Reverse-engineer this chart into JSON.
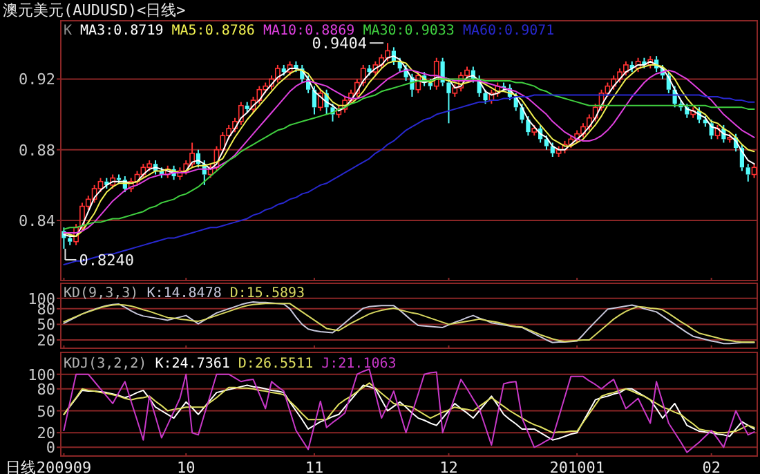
{
  "chart_data": [
    {
      "type": "candlestick",
      "title": "澳元美元(AUDUSD)<日线>",
      "annotations": [
        "K",
        "0.9404",
        "0.8240"
      ],
      "categories": [
        "200909",
        null,
        null,
        null,
        null,
        null,
        null,
        null,
        null,
        null,
        null,
        null,
        null,
        null,
        null,
        null,
        null,
        null,
        null,
        null,
        "10",
        null,
        null,
        null,
        null,
        null,
        null,
        null,
        null,
        null,
        null,
        null,
        null,
        null,
        null,
        null,
        null,
        null,
        null,
        null,
        null,
        "11",
        null,
        null,
        null,
        null,
        null,
        null,
        null,
        null,
        null,
        null,
        null,
        null,
        null,
        null,
        null,
        null,
        null,
        null,
        null,
        null,
        null,
        "12",
        null,
        null,
        null,
        null,
        null,
        null,
        null,
        null,
        null,
        null,
        null,
        null,
        null,
        null,
        null,
        null,
        null,
        null,
        null,
        null,
        "201001",
        null,
        null,
        null,
        null,
        null,
        null,
        null,
        null,
        null,
        null,
        null,
        null,
        null,
        null,
        null,
        null,
        null,
        null,
        null,
        null,
        null,
        "02",
        null,
        null,
        null,
        null,
        null,
        null,
        null
      ],
      "ohlc": [
        [
          0.834,
          0.836,
          0.824,
          0.83
        ],
        [
          0.83,
          0.832,
          0.826,
          0.828
        ],
        [
          0.828,
          0.838,
          0.826,
          0.836
        ],
        [
          0.836,
          0.85,
          0.834,
          0.848
        ],
        [
          0.848,
          0.854,
          0.846,
          0.852
        ],
        [
          0.852,
          0.86,
          0.85,
          0.858
        ],
        [
          0.858,
          0.864,
          0.856,
          0.862
        ],
        [
          0.862,
          0.864,
          0.858,
          0.86
        ],
        [
          0.86,
          0.866,
          0.858,
          0.864
        ],
        [
          0.864,
          0.866,
          0.861,
          0.863
        ],
        [
          0.863,
          0.865,
          0.856,
          0.858
        ],
        [
          0.858,
          0.864,
          0.856,
          0.862
        ],
        [
          0.862,
          0.868,
          0.86,
          0.866
        ],
        [
          0.866,
          0.872,
          0.864,
          0.87
        ],
        [
          0.87,
          0.874,
          0.868,
          0.872
        ],
        [
          0.872,
          0.874,
          0.866,
          0.868
        ],
        [
          0.868,
          0.87,
          0.864,
          0.866
        ],
        [
          0.866,
          0.871,
          0.864,
          0.869
        ],
        [
          0.869,
          0.871,
          0.863,
          0.865
        ],
        [
          0.865,
          0.87,
          0.863,
          0.868
        ],
        [
          0.868,
          0.874,
          0.866,
          0.872
        ],
        [
          0.872,
          0.884,
          0.87,
          0.878
        ],
        [
          0.878,
          0.88,
          0.87,
          0.872
        ],
        [
          0.872,
          0.874,
          0.86,
          0.866
        ],
        [
          0.866,
          0.872,
          0.864,
          0.87
        ],
        [
          0.87,
          0.882,
          0.868,
          0.88
        ],
        [
          0.88,
          0.89,
          0.878,
          0.888
        ],
        [
          0.888,
          0.894,
          0.886,
          0.892
        ],
        [
          0.892,
          0.898,
          0.89,
          0.896
        ],
        [
          0.896,
          0.907,
          0.894,
          0.905
        ],
        [
          0.905,
          0.907,
          0.901,
          0.903
        ],
        [
          0.903,
          0.91,
          0.901,
          0.908
        ],
        [
          0.908,
          0.916,
          0.906,
          0.914
        ],
        [
          0.914,
          0.918,
          0.912,
          0.916
        ],
        [
          0.916,
          0.922,
          0.914,
          0.92
        ],
        [
          0.92,
          0.928,
          0.918,
          0.926
        ],
        [
          0.926,
          0.928,
          0.922,
          0.924
        ],
        [
          0.924,
          0.93,
          0.922,
          0.928
        ],
        [
          0.928,
          0.93,
          0.924,
          0.926
        ],
        [
          0.926,
          0.928,
          0.918,
          0.92
        ],
        [
          0.92,
          0.922,
          0.912,
          0.914
        ],
        [
          0.914,
          0.916,
          0.9,
          0.904
        ],
        [
          0.904,
          0.914,
          0.902,
          0.912
        ],
        [
          0.912,
          0.914,
          0.9,
          0.904
        ],
        [
          0.904,
          0.906,
          0.896,
          0.9
        ],
        [
          0.9,
          0.905,
          0.898,
          0.903
        ],
        [
          0.903,
          0.91,
          0.901,
          0.908
        ],
        [
          0.908,
          0.914,
          0.906,
          0.912
        ],
        [
          0.912,
          0.92,
          0.91,
          0.918
        ],
        [
          0.918,
          0.928,
          0.916,
          0.926
        ],
        [
          0.926,
          0.928,
          0.922,
          0.924
        ],
        [
          0.924,
          0.93,
          0.922,
          0.928
        ],
        [
          0.928,
          0.934,
          0.926,
          0.932
        ],
        [
          0.932,
          0.9404,
          0.93,
          0.936
        ],
        [
          0.936,
          0.938,
          0.928,
          0.93
        ],
        [
          0.93,
          0.932,
          0.924,
          0.926
        ],
        [
          0.926,
          0.928,
          0.919,
          0.921
        ],
        [
          0.921,
          0.923,
          0.91,
          0.914
        ],
        [
          0.914,
          0.924,
          0.912,
          0.922
        ],
        [
          0.922,
          0.924,
          0.916,
          0.918
        ],
        [
          0.918,
          0.92,
          0.914,
          0.916
        ],
        [
          0.916,
          0.932,
          0.914,
          0.93
        ],
        [
          0.93,
          0.932,
          0.916,
          0.918
        ],
        [
          0.918,
          0.92,
          0.895,
          0.912
        ],
        [
          0.912,
          0.917,
          0.91,
          0.915
        ],
        [
          0.915,
          0.924,
          0.913,
          0.922
        ],
        [
          0.922,
          0.927,
          0.92,
          0.925
        ],
        [
          0.925,
          0.927,
          0.918,
          0.92
        ],
        [
          0.92,
          0.922,
          0.91,
          0.912
        ],
        [
          0.912,
          0.914,
          0.906,
          0.908
        ],
        [
          0.908,
          0.914,
          0.906,
          0.912
        ],
        [
          0.912,
          0.918,
          0.91,
          0.916
        ],
        [
          0.916,
          0.918,
          0.913,
          0.915
        ],
        [
          0.915,
          0.917,
          0.908,
          0.91
        ],
        [
          0.91,
          0.912,
          0.902,
          0.904
        ],
        [
          0.904,
          0.906,
          0.895,
          0.897
        ],
        [
          0.897,
          0.899,
          0.888,
          0.89
        ],
        [
          0.89,
          0.894,
          0.888,
          0.892
        ],
        [
          0.892,
          0.894,
          0.884,
          0.886
        ],
        [
          0.886,
          0.888,
          0.88,
          0.882
        ],
        [
          0.882,
          0.884,
          0.876,
          0.878
        ],
        [
          0.878,
          0.882,
          0.876,
          0.88
        ],
        [
          0.88,
          0.885,
          0.878,
          0.883
        ],
        [
          0.883,
          0.888,
          0.881,
          0.886
        ],
        [
          0.886,
          0.891,
          0.884,
          0.889
        ],
        [
          0.889,
          0.895,
          0.887,
          0.893
        ],
        [
          0.893,
          0.9,
          0.891,
          0.898
        ],
        [
          0.898,
          0.906,
          0.896,
          0.904
        ],
        [
          0.904,
          0.914,
          0.902,
          0.912
        ],
        [
          0.912,
          0.918,
          0.91,
          0.916
        ],
        [
          0.916,
          0.922,
          0.914,
          0.92
        ],
        [
          0.92,
          0.926,
          0.918,
          0.924
        ],
        [
          0.924,
          0.93,
          0.922,
          0.928
        ],
        [
          0.928,
          0.93,
          0.924,
          0.926
        ],
        [
          0.926,
          0.932,
          0.924,
          0.93
        ],
        [
          0.93,
          0.932,
          0.926,
          0.928
        ],
        [
          0.928,
          0.933,
          0.926,
          0.931
        ],
        [
          0.931,
          0.933,
          0.924,
          0.926
        ],
        [
          0.926,
          0.928,
          0.92,
          0.922
        ],
        [
          0.922,
          0.924,
          0.912,
          0.914
        ],
        [
          0.914,
          0.916,
          0.904,
          0.906
        ],
        [
          0.906,
          0.908,
          0.902,
          0.904
        ],
        [
          0.904,
          0.906,
          0.898,
          0.9
        ],
        [
          0.9,
          0.904,
          0.898,
          0.902
        ],
        [
          0.902,
          0.904,
          0.895,
          0.897
        ],
        [
          0.897,
          0.899,
          0.893,
          0.895
        ],
        [
          0.895,
          0.897,
          0.886,
          0.888
        ],
        [
          0.888,
          0.894,
          0.886,
          0.892
        ],
        [
          0.892,
          0.894,
          0.884,
          0.886
        ],
        [
          0.886,
          0.889,
          0.884,
          0.887
        ],
        [
          0.887,
          0.889,
          0.879,
          0.881
        ],
        [
          0.881,
          0.883,
          0.868,
          0.87
        ],
        [
          0.87,
          0.872,
          0.862,
          0.866
        ],
        [
          0.866,
          0.872,
          0.864,
          0.87
        ]
      ],
      "colors": [
        "#54fcfc",
        "#54fcfc",
        "#ff3232",
        "#ff3232",
        "#ff3232",
        "#ff3232",
        "#ff3232",
        "#54fcfc",
        "#ff3232",
        "#54fcfc",
        "#54fcfc",
        "#ff3232",
        "#ff3232",
        "#ff3232",
        "#ff3232",
        "#54fcfc",
        "#54fcfc",
        "#ff3232",
        "#54fcfc",
        "#ff3232",
        "#ff3232",
        "#ff3232",
        "#54fcfc",
        "#54fcfc",
        "#ff3232",
        "#ff3232",
        "#ff3232",
        "#ff3232",
        "#ff3232",
        "#ff3232",
        "#54fcfc",
        "#ff3232",
        "#ff3232",
        "#ff3232",
        "#ff3232",
        "#ff3232",
        "#54fcfc",
        "#ff3232",
        "#54fcfc",
        "#54fcfc",
        "#54fcfc",
        "#54fcfc",
        "#ff3232",
        "#54fcfc",
        "#54fcfc",
        "#ff3232",
        "#ff3232",
        "#ff3232",
        "#ff3232",
        "#ff3232",
        "#54fcfc",
        "#ff3232",
        "#ff3232",
        "#ff3232",
        "#54fcfc",
        "#54fcfc",
        "#54fcfc",
        "#54fcfc",
        "#ff3232",
        "#54fcfc",
        "#54fcfc",
        "#ff3232",
        "#54fcfc",
        "#54fcfc",
        "#ff3232",
        "#ff3232",
        "#ff3232",
        "#54fcfc",
        "#54fcfc",
        "#54fcfc",
        "#ff3232",
        "#ff3232",
        "#54fcfc",
        "#54fcfc",
        "#54fcfc",
        "#54fcfc",
        "#54fcfc",
        "#ff3232",
        "#54fcfc",
        "#54fcfc",
        "#54fcfc",
        "#ff3232",
        "#ff3232",
        "#ff3232",
        "#ff3232",
        "#ff3232",
        "#ff3232",
        "#ff3232",
        "#ff3232",
        "#ff3232",
        "#ff3232",
        "#ff3232",
        "#ff3232",
        "#54fcfc",
        "#ff3232",
        "#54fcfc",
        "#ff3232",
        "#54fcfc",
        "#54fcfc",
        "#54fcfc",
        "#54fcfc",
        "#54fcfc",
        "#54fcfc",
        "#ff3232",
        "#54fcfc",
        "#54fcfc",
        "#54fcfc",
        "#ff3232",
        "#54fcfc",
        "#ff3232",
        "#54fcfc",
        "#54fcfc",
        "#54fcfc",
        "#ff3232"
      ],
      "series": [
        {
          "type": "line",
          "name": "MA3:0.8719",
          "color": "#ffffff",
          "values": [
            0.832,
            0.831,
            0.831,
            0.837,
            0.845,
            0.853,
            0.857,
            0.86,
            0.862,
            0.862,
            0.862,
            0.861,
            0.862,
            0.866,
            0.869,
            0.87,
            0.869,
            0.868,
            0.867,
            0.867,
            0.868,
            0.873,
            0.874,
            0.872,
            0.869,
            0.872,
            0.879,
            0.887,
            0.892,
            0.898,
            0.901,
            0.905,
            0.908,
            0.913,
            0.917,
            0.921,
            0.923,
            0.926,
            0.926,
            0.925,
            0.92,
            0.913,
            0.91,
            0.907,
            0.905,
            0.902,
            0.904,
            0.908,
            0.913,
            0.919,
            0.923,
            0.926,
            0.928,
            0.932,
            0.933,
            0.931,
            0.926,
            0.92,
            0.919,
            0.918,
            0.919,
            0.921,
            0.921,
            0.92,
            0.915,
            0.916,
            0.921,
            0.922,
            0.919,
            0.913,
            0.911,
            0.912,
            0.914,
            0.914,
            0.91,
            0.904,
            0.897,
            0.893,
            0.889,
            0.887,
            0.882,
            0.88,
            0.88,
            0.883,
            0.886,
            0.889,
            0.893,
            0.898,
            0.905,
            0.911,
            0.916,
            0.92,
            0.924,
            0.926,
            0.928,
            0.928,
            0.93,
            0.928,
            0.926,
            0.921,
            0.914,
            0.908,
            0.903,
            0.902,
            0.9,
            0.898,
            0.893,
            0.892,
            0.889,
            0.888,
            0.885,
            0.879,
            0.874,
            0.872
          ]
        },
        {
          "type": "line",
          "name": "MA5:0.8786",
          "color": "#f0f050",
          "values": [
            0.833,
            0.832,
            0.831,
            0.834,
            0.839,
            0.844,
            0.851,
            0.856,
            0.859,
            0.861,
            0.861,
            0.861,
            0.862,
            0.864,
            0.866,
            0.868,
            0.868,
            0.869,
            0.868,
            0.867,
            0.868,
            0.87,
            0.871,
            0.871,
            0.872,
            0.873,
            0.875,
            0.881,
            0.887,
            0.892,
            0.897,
            0.901,
            0.905,
            0.909,
            0.913,
            0.917,
            0.92,
            0.923,
            0.925,
            0.925,
            0.923,
            0.918,
            0.914,
            0.911,
            0.907,
            0.905,
            0.905,
            0.906,
            0.909,
            0.913,
            0.918,
            0.922,
            0.926,
            0.929,
            0.93,
            0.93,
            0.929,
            0.925,
            0.923,
            0.92,
            0.918,
            0.92,
            0.92,
            0.919,
            0.918,
            0.917,
            0.918,
            0.919,
            0.919,
            0.917,
            0.915,
            0.913,
            0.913,
            0.912,
            0.911,
            0.908,
            0.903,
            0.898,
            0.894,
            0.89,
            0.886,
            0.884,
            0.882,
            0.882,
            0.884,
            0.886,
            0.89,
            0.894,
            0.899,
            0.905,
            0.91,
            0.915,
            0.92,
            0.923,
            0.926,
            0.927,
            0.928,
            0.928,
            0.927,
            0.924,
            0.92,
            0.914,
            0.909,
            0.905,
            0.902,
            0.9,
            0.896,
            0.895,
            0.892,
            0.89,
            0.887,
            0.883,
            0.88,
            0.879
          ]
        },
        {
          "type": "line",
          "name": "MA10:0.8869",
          "color": "#e040e0",
          "values": [
            0.833,
            0.833,
            0.833,
            0.834,
            0.836,
            0.839,
            0.843,
            0.847,
            0.851,
            0.854,
            0.857,
            0.859,
            0.86,
            0.862,
            0.864,
            0.865,
            0.866,
            0.866,
            0.867,
            0.867,
            0.867,
            0.868,
            0.869,
            0.869,
            0.869,
            0.87,
            0.872,
            0.874,
            0.877,
            0.881,
            0.885,
            0.889,
            0.893,
            0.897,
            0.901,
            0.905,
            0.909,
            0.913,
            0.916,
            0.918,
            0.919,
            0.918,
            0.917,
            0.916,
            0.914,
            0.912,
            0.91,
            0.909,
            0.909,
            0.91,
            0.912,
            0.914,
            0.917,
            0.92,
            0.922,
            0.924,
            0.925,
            0.925,
            0.924,
            0.923,
            0.922,
            0.922,
            0.921,
            0.92,
            0.919,
            0.919,
            0.919,
            0.919,
            0.919,
            0.918,
            0.917,
            0.916,
            0.915,
            0.914,
            0.913,
            0.911,
            0.909,
            0.906,
            0.903,
            0.9,
            0.896,
            0.893,
            0.89,
            0.888,
            0.886,
            0.885,
            0.885,
            0.886,
            0.888,
            0.891,
            0.895,
            0.9,
            0.905,
            0.91,
            0.914,
            0.918,
            0.921,
            0.923,
            0.924,
            0.925,
            0.924,
            0.922,
            0.92,
            0.917,
            0.914,
            0.911,
            0.908,
            0.904,
            0.9,
            0.897,
            0.894,
            0.891,
            0.889,
            0.887
          ]
        },
        {
          "type": "line",
          "name": "MA30:0.9033",
          "color": "#40d040",
          "values": [
            0.835,
            0.836,
            0.836,
            0.837,
            0.838,
            0.839,
            0.839,
            0.84,
            0.841,
            0.841,
            0.842,
            0.843,
            0.844,
            0.845,
            0.847,
            0.848,
            0.85,
            0.851,
            0.852,
            0.854,
            0.855,
            0.857,
            0.859,
            0.862,
            0.865,
            0.868,
            0.871,
            0.874,
            0.876,
            0.879,
            0.881,
            0.883,
            0.885,
            0.887,
            0.889,
            0.891,
            0.892,
            0.894,
            0.895,
            0.896,
            0.897,
            0.898,
            0.899,
            0.9,
            0.901,
            0.903,
            0.904,
            0.906,
            0.907,
            0.909,
            0.91,
            0.911,
            0.913,
            0.914,
            0.915,
            0.916,
            0.917,
            0.918,
            0.919,
            0.919,
            0.919,
            0.92,
            0.92,
            0.92,
            0.92,
            0.92,
            0.92,
            0.92,
            0.92,
            0.919,
            0.919,
            0.919,
            0.919,
            0.919,
            0.918,
            0.918,
            0.917,
            0.916,
            0.914,
            0.913,
            0.911,
            0.91,
            0.909,
            0.908,
            0.907,
            0.906,
            0.905,
            0.905,
            0.905,
            0.905,
            0.905,
            0.905,
            0.905,
            0.905,
            0.905,
            0.905,
            0.905,
            0.905,
            0.905,
            0.905,
            0.905,
            0.905,
            0.905,
            0.905,
            0.905,
            0.905,
            0.904,
            0.904,
            0.904,
            0.904,
            0.904,
            0.904,
            0.903,
            0.903
          ]
        },
        {
          "type": "line",
          "name": "MA60:0.9071",
          "color": "#2828d0",
          "values": [
            0.815,
            0.816,
            0.817,
            0.817,
            0.818,
            0.819,
            0.82,
            0.821,
            0.821,
            0.822,
            0.823,
            0.824,
            0.825,
            0.826,
            0.827,
            0.828,
            0.829,
            0.83,
            0.83,
            0.831,
            0.832,
            0.833,
            0.834,
            0.835,
            0.836,
            0.836,
            0.837,
            0.838,
            0.839,
            0.84,
            0.841,
            0.843,
            0.844,
            0.846,
            0.847,
            0.849,
            0.85,
            0.852,
            0.853,
            0.855,
            0.856,
            0.858,
            0.86,
            0.861,
            0.863,
            0.865,
            0.867,
            0.869,
            0.871,
            0.873,
            0.875,
            0.878,
            0.88,
            0.883,
            0.885,
            0.888,
            0.891,
            0.893,
            0.895,
            0.897,
            0.898,
            0.9,
            0.901,
            0.902,
            0.903,
            0.904,
            0.905,
            0.906,
            0.907,
            0.907,
            0.908,
            0.908,
            0.909,
            0.909,
            0.91,
            0.91,
            0.91,
            0.911,
            0.911,
            0.911,
            0.911,
            0.911,
            0.911,
            0.911,
            0.911,
            0.911,
            0.911,
            0.911,
            0.911,
            0.911,
            0.911,
            0.911,
            0.911,
            0.911,
            0.911,
            0.911,
            0.911,
            0.911,
            0.911,
            0.911,
            0.911,
            0.911,
            0.911,
            0.911,
            0.911,
            0.91,
            0.91,
            0.91,
            0.909,
            0.909,
            0.908,
            0.908,
            0.907,
            0.907
          ]
        }
      ],
      "ylim": [
        0.806,
        0.953
      ],
      "yticks": [
        0.84,
        0.88,
        0.92
      ],
      "grid": "y",
      "tick_labels": "y",
      "legend": "top left"
    },
    {
      "type": "line",
      "title": "KD(9,3,3)",
      "categories": [
        "200909",
        null,
        null,
        null,
        null,
        null,
        null,
        null,
        null,
        null,
        null,
        null,
        null,
        null,
        null,
        null,
        null,
        null,
        null,
        null,
        "10",
        null,
        null,
        null,
        null,
        null,
        null,
        null,
        null,
        null,
        null,
        null,
        null,
        null,
        null,
        null,
        null,
        null,
        null,
        null,
        null,
        "11",
        null,
        null,
        null,
        null,
        null,
        null,
        null,
        null,
        null,
        null,
        null,
        null,
        null,
        null,
        null,
        null,
        null,
        null,
        null,
        null,
        null,
        "12",
        null,
        null,
        null,
        null,
        null,
        null,
        null,
        null,
        null,
        null,
        null,
        null,
        null,
        null,
        null,
        null,
        null,
        null,
        null,
        null,
        "201001",
        null,
        null,
        null,
        null,
        null,
        null,
        null,
        null,
        null,
        null,
        null,
        null,
        null,
        null,
        null,
        null,
        null,
        null,
        null,
        null,
        null,
        "02",
        null,
        null,
        null,
        null,
        null,
        null,
        null
      ],
      "series": [
        {
          "name": "K:14.8478",
          "color": "#c8c8dc",
          "values": [
            52,
            58,
            64,
            70,
            75,
            79,
            83,
            86,
            88,
            89,
            83,
            76,
            70,
            66,
            64,
            62,
            60,
            58,
            61,
            64,
            67,
            59,
            51,
            58,
            65,
            72,
            76,
            80,
            84,
            88,
            91,
            93,
            92,
            92,
            91,
            90,
            89,
            80,
            64,
            50,
            41,
            38,
            36,
            35,
            34,
            43,
            53,
            63,
            72,
            81,
            84,
            85,
            86,
            86,
            86,
            77,
            67,
            57,
            48,
            47,
            46,
            45,
            44,
            49,
            54,
            58,
            63,
            67,
            62,
            58,
            53,
            51,
            49,
            47,
            45,
            44,
            38,
            32,
            26,
            20,
            15,
            16,
            16,
            17,
            18,
            30,
            43,
            55,
            67,
            79,
            81,
            83,
            85,
            87,
            84,
            80,
            77,
            74,
            66,
            58,
            50,
            42,
            34,
            27,
            24,
            21,
            18,
            16,
            13,
            13,
            14,
            15,
            15,
            15
          ]
        },
        {
          "name": "D:15.5893",
          "color": "#d8d860",
          "values": [
            55,
            60,
            65,
            70,
            74,
            78,
            82,
            85,
            87,
            88,
            87,
            85,
            82,
            78,
            75,
            71,
            67,
            63,
            62,
            60,
            59,
            57,
            56,
            59,
            63,
            67,
            71,
            75,
            79,
            83,
            86,
            88,
            89,
            90,
            90,
            90,
            90,
            90,
            82,
            74,
            66,
            58,
            50,
            42,
            40,
            38,
            45,
            52,
            58,
            64,
            70,
            74,
            77,
            79,
            81,
            78,
            75,
            72,
            70,
            66,
            62,
            58,
            54,
            50,
            52,
            54,
            56,
            58,
            60,
            58,
            56,
            54,
            51,
            48,
            46,
            45,
            40,
            35,
            30,
            26,
            22,
            19,
            17,
            18,
            19,
            20,
            20,
            30,
            40,
            50,
            60,
            68,
            75,
            80,
            84,
            83,
            81,
            80,
            78,
            71,
            63,
            55,
            48,
            40,
            33,
            30,
            27,
            24,
            21,
            19,
            17,
            16,
            16,
            16
          ]
        }
      ],
      "ylim": [
        4,
        129
      ],
      "yticks": [
        20,
        50,
        80,
        100
      ],
      "grid": "y",
      "tick_labels": "y",
      "legend": "top left"
    },
    {
      "type": "line",
      "title": "KDJ(3,2,2)",
      "xlabel": "日线",
      "categories": [
        "200909",
        null,
        null,
        null,
        null,
        null,
        null,
        null,
        null,
        null,
        null,
        null,
        null,
        null,
        null,
        null,
        null,
        null,
        null,
        null,
        "10",
        null,
        null,
        null,
        null,
        null,
        null,
        null,
        null,
        null,
        null,
        null,
        null,
        null,
        null,
        null,
        null,
        null,
        null,
        null,
        null,
        "11",
        null,
        null,
        null,
        null,
        null,
        null,
        null,
        null,
        null,
        null,
        null,
        null,
        null,
        null,
        null,
        null,
        null,
        null,
        null,
        null,
        null,
        "12",
        null,
        null,
        null,
        null,
        null,
        null,
        null,
        null,
        null,
        null,
        null,
        null,
        null,
        null,
        null,
        null,
        null,
        null,
        null,
        null,
        "201001",
        null,
        null,
        null,
        null,
        null,
        null,
        null,
        null,
        null,
        null,
        null,
        null,
        null,
        null,
        null,
        null,
        null,
        null,
        null,
        null,
        null,
        "02",
        null,
        null,
        null,
        null,
        null,
        null,
        null
      ],
      "series": [
        {
          "name": "K:24.7361",
          "color": "#ffffff",
          "values": [
            45,
            56,
            67,
            78,
            77,
            77,
            76,
            75,
            73,
            71,
            68,
            71,
            75,
            78,
            67,
            55,
            50,
            45,
            40,
            51,
            62,
            54,
            45,
            55,
            65,
            75,
            77,
            79,
            81,
            83,
            85,
            83,
            82,
            80,
            78,
            77,
            75,
            62,
            50,
            38,
            25,
            30,
            35,
            38,
            42,
            45,
            55,
            65,
            75,
            85,
            83,
            80,
            65,
            50,
            56,
            62,
            55,
            47,
            40,
            37,
            33,
            30,
            40,
            50,
            60,
            53,
            47,
            40,
            50,
            60,
            70,
            58,
            45,
            38,
            32,
            25,
            25,
            25,
            20,
            15,
            10,
            12,
            15,
            18,
            20,
            35,
            50,
            65,
            68,
            70,
            73,
            75,
            80,
            80,
            75,
            70,
            65,
            53,
            40,
            50,
            60,
            45,
            30,
            26,
            22,
            21,
            20,
            18,
            17,
            15,
            25,
            35,
            30,
            25
          ]
        },
        {
          "name": "D:26.5511",
          "color": "#e0e060",
          "values": [
            45,
            57,
            68,
            80,
            78,
            77,
            75,
            74,
            72,
            70,
            67,
            65,
            67,
            68,
            70,
            63,
            57,
            50,
            52,
            53,
            55,
            55,
            55,
            55,
            62,
            68,
            75,
            82,
            82,
            81,
            81,
            80,
            78,
            77,
            75,
            74,
            72,
            63,
            55,
            46,
            38,
            38,
            38,
            38,
            49,
            59,
            65,
            70,
            76,
            82,
            88,
            81,
            74,
            67,
            60,
            58,
            57,
            55,
            50,
            45,
            40,
            44,
            48,
            51,
            55,
            53,
            52,
            50,
            56,
            62,
            68,
            62,
            56,
            50,
            45,
            40,
            35,
            31,
            28,
            24,
            20,
            21,
            21,
            22,
            22,
            34,
            46,
            58,
            70,
            73,
            75,
            78,
            80,
            77,
            73,
            70,
            65,
            60,
            55,
            52,
            48,
            45,
            38,
            32,
            25,
            23,
            22,
            20,
            20,
            21,
            22,
            26,
            30,
            27
          ]
        },
        {
          "name": "J:21.1063",
          "color": "#c838c8",
          "values": [
            23,
            62,
            100,
            100,
            100,
            90,
            80,
            70,
            60,
            75,
            90,
            63,
            37,
            10,
            70,
            42,
            13,
            31,
            49,
            67,
            100,
            20,
            17,
            45,
            72,
            100,
            100,
            100,
            95,
            90,
            92,
            93,
            73,
            53,
            90,
            83,
            77,
            50,
            23,
            10,
            -3,
            30,
            63,
            27,
            34,
            40,
            47,
            73,
            100,
            104,
            107,
            74,
            40,
            58,
            77,
            48,
            20,
            47,
            73,
            100,
            102,
            103,
            20,
            45,
            69,
            93,
            80,
            66,
            53,
            28,
            3,
            45,
            87,
            89,
            90,
            40,
            20,
            0,
            4,
            9,
            13,
            41,
            69,
            97,
            97,
            97,
            91,
            86,
            80,
            87,
            93,
            73,
            53,
            60,
            67,
            50,
            33,
            90,
            62,
            33,
            20,
            7,
            -7,
            0,
            7,
            15,
            23,
            12,
            0,
            25,
            50,
            33,
            17,
            21
          ]
        }
      ],
      "ylim": [
        -12,
        130
      ],
      "yticks": [
        0,
        20,
        50,
        80,
        100
      ],
      "grid": "y",
      "legend": "top left"
    }
  ]
}
